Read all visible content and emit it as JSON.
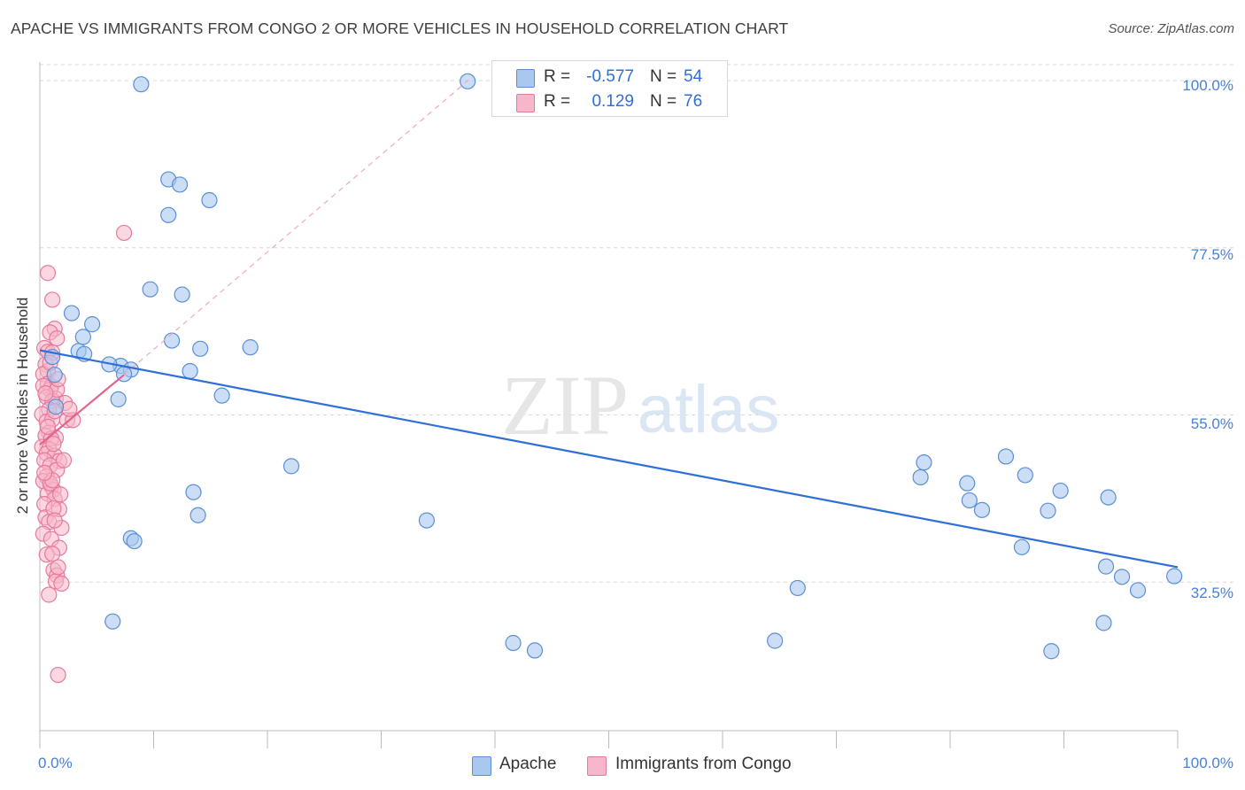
{
  "title": "APACHE VS IMMIGRANTS FROM CONGO 2 OR MORE VEHICLES IN HOUSEHOLD CORRELATION CHART",
  "source": "Source: ZipAtlas.com",
  "watermark": {
    "zip": "ZIP",
    "atlas": "atlas"
  },
  "legend": {
    "rows": [
      {
        "r_label": "R =",
        "r_value": "-0.577",
        "n_label": "N =",
        "n_value": "54",
        "color": "#a8c8f0"
      },
      {
        "r_label": "R =",
        "r_value": "0.129",
        "n_label": "N =",
        "n_value": "76",
        "color": "#f7b6c9"
      }
    ]
  },
  "bottom_legend": {
    "apache": "Apache",
    "congo": "Immigrants from Congo"
  },
  "colors": {
    "apache_fill": "#a8c8f0",
    "apache_stroke": "#5a8fd8",
    "apache_line": "#2f6fd6",
    "congo_fill": "#f7b6c9",
    "congo_stroke": "#e67a9c",
    "congo_line": "#e0668e",
    "tick_label": "#4a7fd6",
    "grid": "#d8d8d8"
  },
  "chart_data": {
    "type": "scatter",
    "title": "APACHE VS IMMIGRANTS FROM CONGO 2 OR MORE VEHICLES IN HOUSEHOLD CORRELATION CHART",
    "xlabel": "",
    "ylabel": "2 or more Vehicles in Household",
    "xlim": [
      0,
      100
    ],
    "ylim": [
      12.5,
      102.5
    ],
    "x_tick_labels": [
      "0.0%",
      "100.0%"
    ],
    "y_ticks": [
      32.5,
      55.0,
      77.5,
      100.0
    ],
    "y_tick_labels": [
      "32.5%",
      "55.0%",
      "77.5%",
      "100.0%"
    ],
    "grid": true,
    "legend_position": "top-center",
    "series": [
      {
        "name": "Apache",
        "r": -0.577,
        "n": 54,
        "trend": {
          "x": [
            0,
            100
          ],
          "y": [
            63.7,
            34.5
          ]
        },
        "points": [
          [
            1.3,
            60.4
          ],
          [
            1.1,
            62.8
          ],
          [
            3.4,
            63.6
          ],
          [
            2.8,
            68.7
          ],
          [
            3.9,
            63.2
          ],
          [
            4.6,
            67.2
          ],
          [
            3.8,
            65.5
          ],
          [
            7.1,
            61.6
          ],
          [
            6.9,
            57.1
          ],
          [
            6.1,
            61.8
          ],
          [
            8.0,
            61.1
          ],
          [
            7.4,
            60.5
          ],
          [
            8.9,
            99.5
          ],
          [
            9.7,
            71.9
          ],
          [
            11.3,
            86.7
          ],
          [
            11.3,
            81.9
          ],
          [
            12.3,
            86.0
          ],
          [
            14.9,
            83.9
          ],
          [
            12.5,
            71.2
          ],
          [
            14.1,
            63.9
          ],
          [
            11.6,
            65.0
          ],
          [
            13.2,
            60.9
          ],
          [
            16.0,
            57.6
          ],
          [
            18.5,
            64.1
          ],
          [
            22.1,
            48.1
          ],
          [
            1.4,
            56.1
          ],
          [
            13.5,
            44.6
          ],
          [
            13.9,
            41.5
          ],
          [
            8.0,
            38.4
          ],
          [
            8.3,
            38.0
          ],
          [
            34.0,
            40.8
          ],
          [
            37.6,
            99.9
          ],
          [
            41.6,
            24.3
          ],
          [
            43.5,
            23.3
          ],
          [
            64.6,
            24.6
          ],
          [
            77.7,
            48.6
          ],
          [
            77.4,
            46.6
          ],
          [
            81.5,
            45.8
          ],
          [
            84.9,
            49.4
          ],
          [
            86.6,
            46.9
          ],
          [
            89.7,
            44.8
          ],
          [
            93.9,
            43.9
          ],
          [
            88.6,
            42.1
          ],
          [
            82.8,
            42.2
          ],
          [
            81.7,
            43.5
          ],
          [
            86.3,
            37.2
          ],
          [
            93.7,
            34.6
          ],
          [
            95.1,
            33.2
          ],
          [
            96.5,
            31.4
          ],
          [
            99.7,
            33.3
          ],
          [
            66.6,
            31.7
          ],
          [
            88.9,
            23.2
          ],
          [
            93.5,
            27.0
          ],
          [
            6.4,
            27.2
          ]
        ]
      },
      {
        "name": "Immigrants from Congo",
        "r": 0.129,
        "n": 76,
        "trend": {
          "x": [
            0,
            7.4
          ],
          "y": [
            51.0,
            60.4
          ]
        },
        "trend_extended": {
          "x": [
            7.4,
            38.0
          ],
          "y": [
            60.4,
            100.5
          ]
        },
        "points": [
          [
            0.7,
            74.1
          ],
          [
            1.1,
            70.5
          ],
          [
            1.3,
            66.6
          ],
          [
            0.9,
            66.1
          ],
          [
            1.5,
            65.3
          ],
          [
            0.4,
            64.0
          ],
          [
            0.7,
            63.5
          ],
          [
            1.1,
            63.4
          ],
          [
            0.5,
            61.8
          ],
          [
            0.7,
            60.9
          ],
          [
            0.3,
            60.5
          ],
          [
            0.7,
            59.2
          ],
          [
            1.0,
            58.8
          ],
          [
            0.9,
            58.4
          ],
          [
            0.3,
            58.9
          ],
          [
            0.6,
            57.4
          ],
          [
            1.4,
            57.2
          ],
          [
            2.2,
            56.6
          ],
          [
            1.1,
            56.9
          ],
          [
            0.8,
            55.7
          ],
          [
            0.2,
            55.1
          ],
          [
            0.6,
            54.1
          ],
          [
            1.1,
            54.4
          ],
          [
            2.4,
            54.3
          ],
          [
            0.8,
            52.6
          ],
          [
            0.5,
            52.2
          ],
          [
            1.4,
            51.9
          ],
          [
            1.0,
            51.8
          ],
          [
            0.2,
            50.7
          ],
          [
            0.8,
            50.4
          ],
          [
            0.6,
            49.8
          ],
          [
            1.3,
            49.5
          ],
          [
            0.4,
            48.9
          ],
          [
            1.7,
            48.8
          ],
          [
            0.9,
            48.2
          ],
          [
            1.5,
            47.6
          ],
          [
            0.6,
            46.7
          ],
          [
            0.3,
            46.1
          ],
          [
            1.0,
            45.4
          ],
          [
            1.2,
            44.9
          ],
          [
            0.7,
            44.4
          ],
          [
            1.3,
            43.7
          ],
          [
            0.4,
            43.0
          ],
          [
            1.7,
            42.3
          ],
          [
            0.5,
            41.2
          ],
          [
            0.8,
            40.6
          ],
          [
            1.9,
            39.8
          ],
          [
            0.3,
            39.0
          ],
          [
            1.0,
            38.3
          ],
          [
            1.7,
            37.1
          ],
          [
            0.6,
            36.2
          ],
          [
            1.2,
            34.1
          ],
          [
            1.5,
            33.4
          ],
          [
            1.4,
            32.6
          ],
          [
            1.9,
            32.3
          ],
          [
            0.8,
            30.8
          ],
          [
            1.6,
            34.5
          ],
          [
            2.9,
            54.3
          ],
          [
            7.4,
            79.5
          ],
          [
            1.6,
            20.0
          ],
          [
            1.5,
            58.4
          ],
          [
            1.2,
            42.4
          ],
          [
            1.3,
            40.8
          ],
          [
            1.1,
            36.3
          ],
          [
            2.1,
            48.9
          ],
          [
            0.9,
            45.8
          ],
          [
            1.8,
            44.3
          ],
          [
            2.6,
            55.8
          ],
          [
            1.1,
            46.2
          ],
          [
            0.4,
            47.2
          ],
          [
            0.7,
            53.4
          ],
          [
            1.3,
            55.5
          ],
          [
            0.9,
            62.0
          ],
          [
            0.5,
            57.9
          ],
          [
            1.2,
            51.1
          ],
          [
            1.6,
            59.8
          ]
        ]
      }
    ]
  }
}
